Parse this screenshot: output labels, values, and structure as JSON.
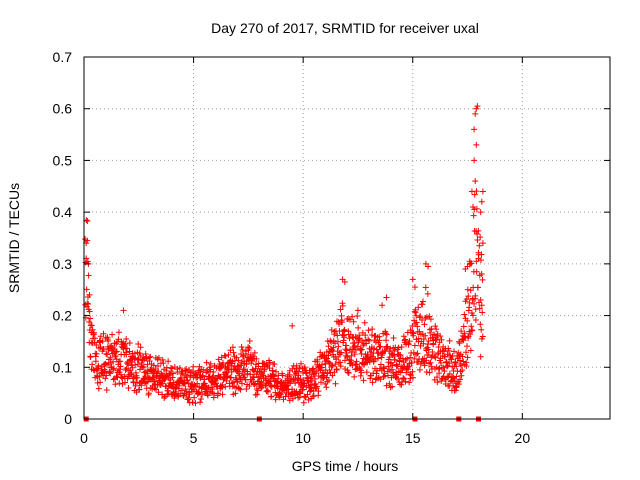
{
  "chart_data": {
    "type": "scatter",
    "title": "Day 270 of 2017, SRMTID for receiver uxal",
    "xlabel": "GPS time / hours",
    "ylabel": "SRMTID / TECUs",
    "xlim": [
      0,
      24
    ],
    "ylim": [
      0,
      0.7
    ],
    "xticks": [
      0,
      5,
      10,
      15,
      20
    ],
    "yticks": [
      0,
      0.1,
      0.2,
      0.3,
      0.4,
      0.5,
      0.6,
      0.7
    ],
    "xtick_labels": [
      "0",
      "5",
      "10",
      "15",
      "20"
    ],
    "ytick_labels": [
      "0",
      "0.1",
      "0.2",
      "0.3",
      "0.4",
      "0.5",
      "0.6",
      "0.7"
    ],
    "grid": true,
    "marker": "+",
    "series": [
      {
        "name": "SRMTID",
        "color": "#ff0000",
        "trend": [
          [
            0.05,
            0.3
          ],
          [
            0.1,
            0.33
          ],
          [
            0.2,
            0.22
          ],
          [
            0.3,
            0.15
          ],
          [
            0.5,
            0.11
          ],
          [
            1.0,
            0.12
          ],
          [
            1.5,
            0.11
          ],
          [
            2.0,
            0.11
          ],
          [
            2.5,
            0.1
          ],
          [
            3.0,
            0.085
          ],
          [
            3.5,
            0.08
          ],
          [
            4.0,
            0.07
          ],
          [
            4.5,
            0.065
          ],
          [
            5.0,
            0.07
          ],
          [
            5.5,
            0.075
          ],
          [
            6.0,
            0.08
          ],
          [
            6.5,
            0.09
          ],
          [
            7.0,
            0.095
          ],
          [
            7.5,
            0.1
          ],
          [
            8.0,
            0.09
          ],
          [
            8.5,
            0.075
          ],
          [
            9.0,
            0.065
          ],
          [
            9.5,
            0.07
          ],
          [
            10.0,
            0.07
          ],
          [
            10.5,
            0.075
          ],
          [
            11.0,
            0.1
          ],
          [
            11.5,
            0.14
          ],
          [
            12.0,
            0.16
          ],
          [
            12.5,
            0.13
          ],
          [
            13.0,
            0.12
          ],
          [
            13.5,
            0.12
          ],
          [
            14.0,
            0.11
          ],
          [
            14.5,
            0.1
          ],
          [
            15.0,
            0.13
          ],
          [
            15.3,
            0.17
          ],
          [
            15.6,
            0.17
          ],
          [
            16.0,
            0.13
          ],
          [
            16.5,
            0.11
          ],
          [
            17.0,
            0.085
          ],
          [
            17.3,
            0.14
          ],
          [
            17.6,
            0.2
          ],
          [
            17.8,
            0.32
          ],
          [
            18.0,
            0.28
          ],
          [
            18.2,
            0.22
          ]
        ],
        "spikes": [
          [
            0.1,
            0.34
          ],
          [
            0.15,
            0.345
          ],
          [
            0.2,
            0.3
          ],
          [
            0.25,
            0.24
          ],
          [
            1.8,
            0.21
          ],
          [
            9.5,
            0.18
          ],
          [
            11.8,
            0.27
          ],
          [
            11.9,
            0.265
          ],
          [
            12.5,
            0.21
          ],
          [
            13.6,
            0.22
          ],
          [
            13.8,
            0.235
          ],
          [
            15.0,
            0.27
          ],
          [
            15.1,
            0.255
          ],
          [
            15.6,
            0.3
          ],
          [
            15.7,
            0.295
          ],
          [
            17.4,
            0.29
          ],
          [
            17.5,
            0.295
          ],
          [
            17.6,
            0.305
          ],
          [
            17.9,
            0.6
          ],
          [
            17.95,
            0.605
          ],
          [
            17.85,
            0.59
          ],
          [
            17.8,
            0.56
          ],
          [
            17.9,
            0.53
          ],
          [
            17.8,
            0.5
          ],
          [
            17.85,
            0.46
          ],
          [
            17.7,
            0.44
          ],
          [
            17.75,
            0.41
          ],
          [
            18.2,
            0.44
          ],
          [
            18.15,
            0.42
          ],
          [
            18.1,
            0.4
          ],
          [
            18.2,
            0.34
          ],
          [
            18.0,
            0.31
          ],
          [
            17.9,
            0.305
          ],
          [
            18.1,
            0.23
          ],
          [
            18.15,
            0.22
          ]
        ],
        "zero_points": [
          0.1,
          8.0,
          15.1,
          17.1,
          18.0
        ]
      }
    ]
  }
}
